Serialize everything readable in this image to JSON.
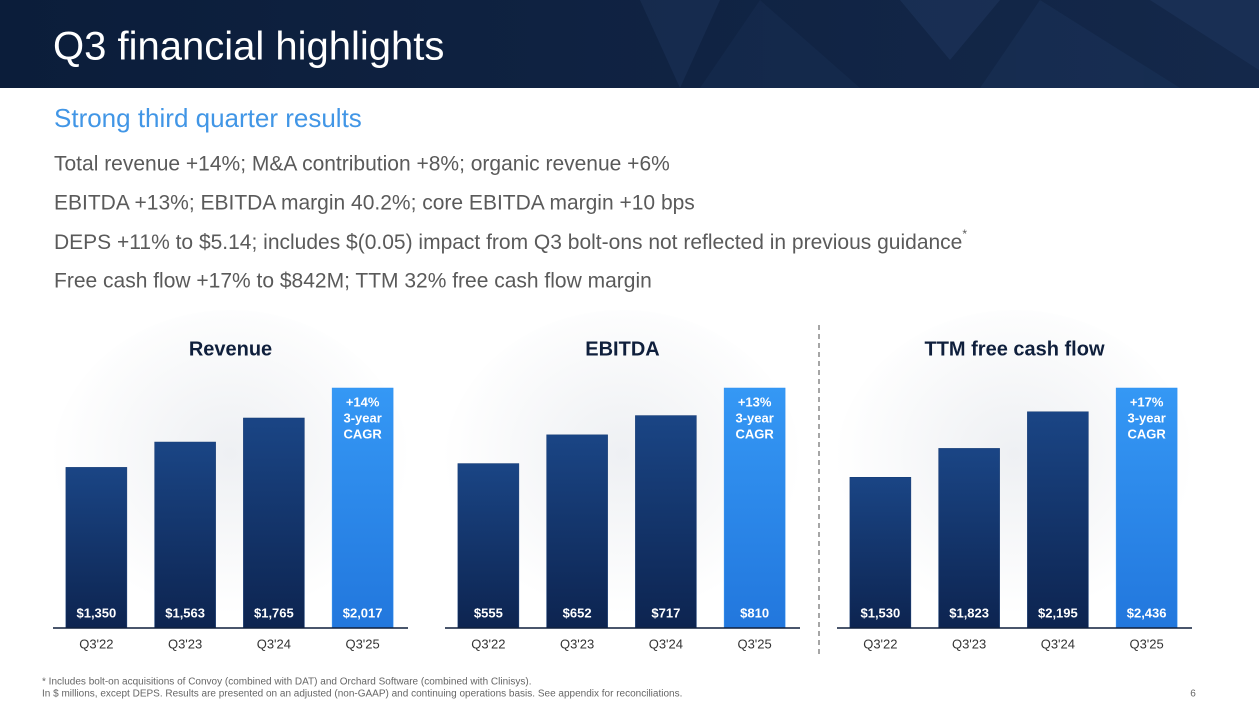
{
  "header": {
    "title": "Q3 financial highlights"
  },
  "subtitle": "Strong third quarter results",
  "bullets": [
    "Total revenue +14%; M&A contribution +8%; organic revenue +6%",
    "EBITDA +13%; EBITDA margin 40.2%; core EBITDA margin +10 bps",
    "DEPS +11% to $5.14; includes $(0.05) impact from Q3 bolt-ons not reflected in previous guidance",
    "Free cash flow +17% to $842M; TTM 32% free cash flow margin"
  ],
  "footnote_marker": "*",
  "chart_data": [
    {
      "type": "bar",
      "title": "Revenue",
      "categories": [
        "Q3'22",
        "Q3'23",
        "Q3'24",
        "Q3'25"
      ],
      "values": [
        1350,
        1563,
        1765,
        2017
      ],
      "value_labels": [
        "$1,350",
        "$1,563",
        "$1,765",
        "$2,017"
      ],
      "colors": [
        "#143a73",
        "#143a73",
        "#143a73",
        "#2f8ff0"
      ],
      "annotation": [
        "+14%",
        "3-year",
        "CAGR"
      ]
    },
    {
      "type": "bar",
      "title": "EBITDA",
      "categories": [
        "Q3'22",
        "Q3'23",
        "Q3'24",
        "Q3'25"
      ],
      "values": [
        555,
        652,
        717,
        810
      ],
      "value_labels": [
        "$555",
        "$652",
        "$717",
        "$810"
      ],
      "colors": [
        "#143a73",
        "#143a73",
        "#143a73",
        "#2f8ff0"
      ],
      "annotation": [
        "+13%",
        "3-year",
        "CAGR"
      ]
    },
    {
      "type": "bar",
      "title": "TTM free cash flow",
      "categories": [
        "Q3'22",
        "Q3'23",
        "Q3'24",
        "Q3'25"
      ],
      "values": [
        1530,
        1823,
        2195,
        2436
      ],
      "value_labels": [
        "$1,530",
        "$1,823",
        "$2,195",
        "$2,436"
      ],
      "colors": [
        "#143a73",
        "#143a73",
        "#143a73",
        "#2f8ff0"
      ],
      "annotation": [
        "+17%",
        "3-year",
        "CAGR"
      ]
    }
  ],
  "footnotes": [
    "* Includes bolt-on acquisitions of Convoy (combined with DAT) and Orchard Software (combined with Clinisys).",
    "In $ millions, except DEPS. Results are presented on an adjusted (non-GAAP) and continuing operations basis. See appendix for reconciliations."
  ],
  "page_number": "6"
}
